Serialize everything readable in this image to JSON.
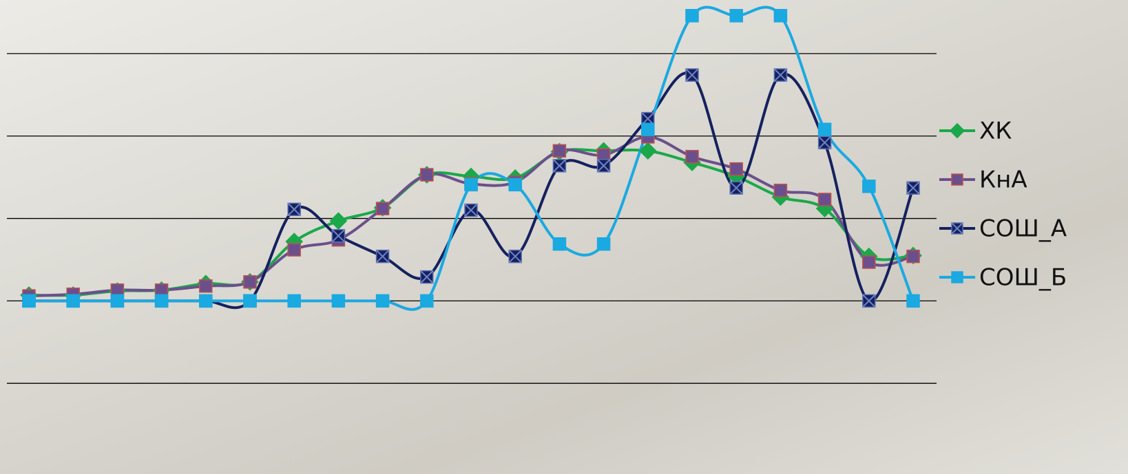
{
  "chart_data": {
    "type": "line",
    "smooth": true,
    "categories": [
      null,
      null,
      null,
      null,
      null,
      null,
      null,
      null,
      null,
      null,
      null,
      null,
      null,
      null,
      null,
      null,
      null,
      null,
      null,
      null,
      null
    ],
    "series": [
      {
        "name": "ХК",
        "color": "#1aa84a",
        "marker": "diamond",
        "values": [
          0.07,
          0.07,
          0.12,
          0.13,
          0.21,
          0.23,
          0.72,
          0.97,
          1.13,
          1.53,
          1.51,
          1.49,
          1.81,
          1.82,
          1.82,
          1.68,
          1.51,
          1.26,
          1.12,
          0.54,
          0.55
        ]
      },
      {
        "name": "КнА",
        "color": "#6b4f8c",
        "marker": "square",
        "values": [
          0.06,
          0.08,
          0.13,
          0.13,
          0.18,
          0.23,
          0.62,
          0.74,
          1.12,
          1.53,
          1.42,
          1.44,
          1.82,
          1.77,
          1.99,
          1.75,
          1.6,
          1.34,
          1.23,
          0.47,
          0.54
        ]
      },
      {
        "name": "СОШ_А",
        "color": "#15215f",
        "marker": "x-square",
        "values": [
          0,
          0,
          0,
          0,
          0,
          0,
          1.11,
          0.79,
          0.54,
          0.29,
          1.1,
          0.54,
          1.64,
          1.64,
          2.21,
          2.74,
          1.37,
          2.74,
          1.92,
          0,
          1.37
        ]
      },
      {
        "name": "СОШ_Б",
        "color": "#1ba9e1",
        "marker": "square",
        "values": [
          0,
          0,
          0,
          0,
          0,
          0,
          0,
          0,
          0,
          0,
          1.41,
          1.41,
          0.69,
          0.69,
          2.08,
          3.46,
          3.46,
          3.46,
          2.08,
          1.39,
          0
        ]
      }
    ],
    "ylim": [
      -2.1,
      3.6
    ],
    "yticks": [
      -1,
      0,
      1,
      2,
      3
    ],
    "grid": true,
    "show_tick_labels": false,
    "legend": "right"
  }
}
